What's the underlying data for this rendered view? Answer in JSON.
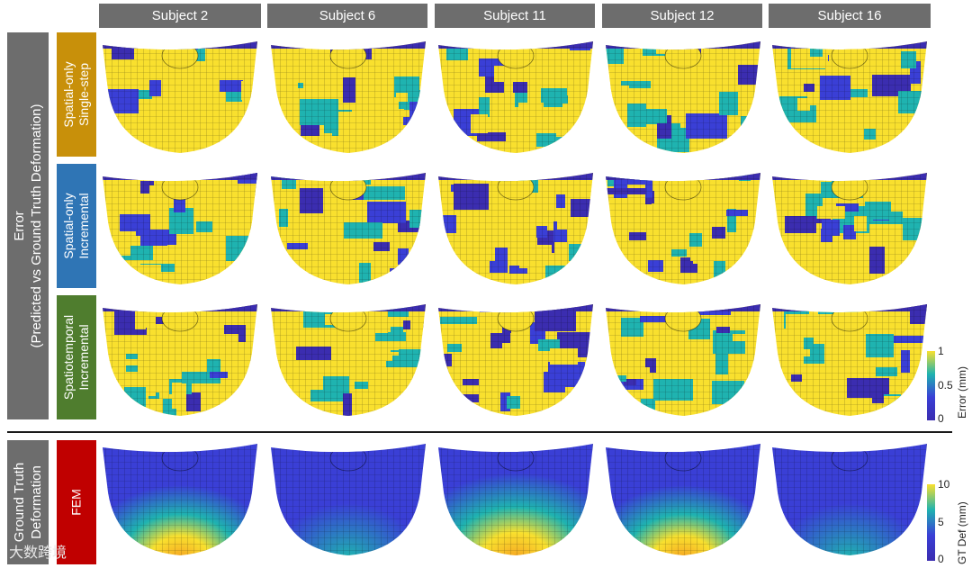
{
  "subjects": [
    "Subject 2",
    "Subject 6",
    "Subject 11",
    "Subject 12",
    "Subject 16"
  ],
  "groups": {
    "error_line1": "Error",
    "error_line2": "(Predicted vs Ground Truth Deformation)",
    "gt_line1": "Ground Truth",
    "gt_line2": "Deformation"
  },
  "rows": [
    {
      "line1": "Spatial-only",
      "line2": "Single-step",
      "color": "#c8900a"
    },
    {
      "line1": "Spatial-only",
      "line2": "Incremental",
      "color": "#2f75b5"
    },
    {
      "line1": "Spatiotemporal",
      "line2": "Incremental",
      "color": "#4f7d2e"
    },
    {
      "line1": "FEM",
      "line2": "",
      "color": "#c00000"
    }
  ],
  "colorbars": {
    "error": {
      "title": "Error (mm)",
      "ticks": [
        "1",
        "0.5",
        "0"
      ]
    },
    "gt": {
      "title": "GT Def (mm)",
      "ticks": [
        "10",
        "5",
        "0"
      ]
    }
  },
  "watermark": "大数跨境",
  "colors": {
    "yellow": "#f9e02e",
    "blue": "#3a3fd6",
    "cyan": "#1fb3b0",
    "navy": "#3b2db0",
    "grey": "#6d6d6d"
  }
}
